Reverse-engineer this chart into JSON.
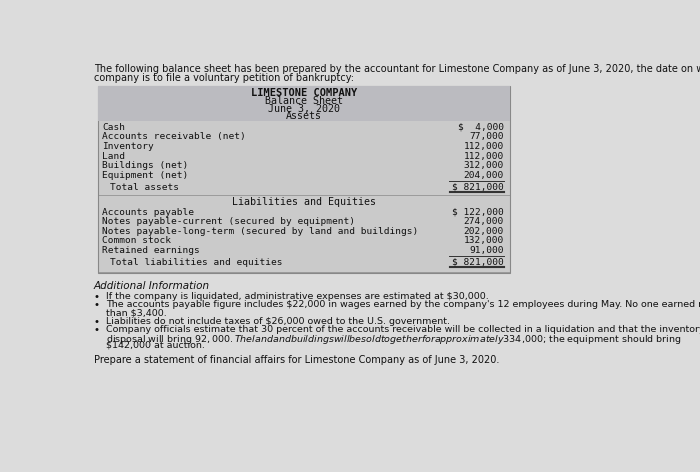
{
  "intro_line1": "The following balance sheet has been prepared by the accountant for Limestone Company as of June 3, 2020, the date on which the",
  "intro_line2": "company is to file a voluntary petition of bankruptcy:",
  "company_name": "LIMESTONE COMPANY",
  "report_title": "Balance Sheet",
  "report_date": "June 3, 2020",
  "assets_header": "Assets",
  "assets": [
    [
      "Cash",
      "$  4,000"
    ],
    [
      "Accounts receivable (net)",
      "77,000"
    ],
    [
      "Inventory",
      "112,000"
    ],
    [
      "Land",
      "112,000"
    ],
    [
      "Buildings (net)",
      "312,000"
    ],
    [
      "Equipment (net)",
      "204,000"
    ]
  ],
  "total_assets_label": "Total assets",
  "total_assets_value": "$ 821,000",
  "liabilities_header": "Liabilities and Equities",
  "liabilities": [
    [
      "Accounts payable",
      "$ 122,000"
    ],
    [
      "Notes payable-current (secured by equipment)",
      "274,000"
    ],
    [
      "Notes payable-long-term (secured by land and buildings)",
      "202,000"
    ],
    [
      "Common stock",
      "132,000"
    ],
    [
      "Retained earnings",
      "91,000"
    ]
  ],
  "total_liab_label": "Total liabilities and equities",
  "total_liab_value": "$ 821,000",
  "additional_info_header": "Additional Information",
  "bullets": [
    [
      "If the company is liquidated, administrative expenses are estimated at $30,000."
    ],
    [
      "The accounts payable figure includes $22,000 in wages earned by the company's 12 employees during May. No one earned more",
      "than $3,400."
    ],
    [
      "Liabilities do not include taxes of $26,000 owed to the U.S. government."
    ],
    [
      "Company officials estimate that 30 percent of the accounts receivable will be collected in a liquidation and that the inventory",
      "disposal will bring $92,000. The land and buildings will be sold together for approximately $334,000; the equipment should bring",
      "$142,000 at auction."
    ]
  ],
  "footer": "Prepare a statement of financial affairs for Limestone Company as of June 3, 2020.",
  "page_bg": "#dcdcdc",
  "table_bg": "#cacaca",
  "header_bg": "#bbbbc0"
}
